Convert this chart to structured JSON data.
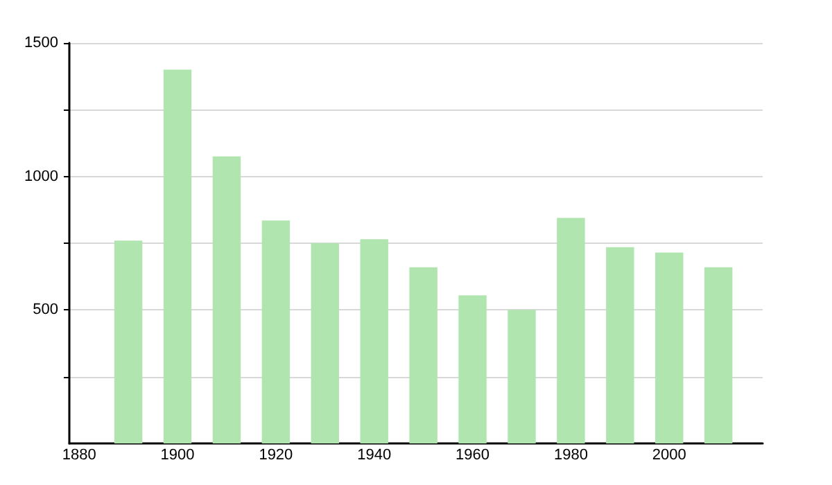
{
  "chart_data": {
    "type": "bar",
    "x": [
      1890,
      1900,
      1910,
      1920,
      1930,
      1940,
      1950,
      1960,
      1970,
      1980,
      1990,
      2000,
      2010
    ],
    "values": [
      760,
      1400,
      1075,
      835,
      750,
      765,
      660,
      555,
      500,
      845,
      735,
      715,
      660
    ],
    "color": "#b0e5b0",
    "xlim": [
      1878,
      2019
    ],
    "xticks": [
      1880,
      1900,
      1920,
      1940,
      1960,
      1980,
      2000
    ],
    "ylim": [
      0,
      1500
    ],
    "yticks": [
      {
        "value": 250,
        "label": null
      },
      500,
      {
        "value": 750,
        "label": null
      },
      1000,
      {
        "value": 1250,
        "label": null
      },
      1500
    ],
    "grid": "y"
  }
}
